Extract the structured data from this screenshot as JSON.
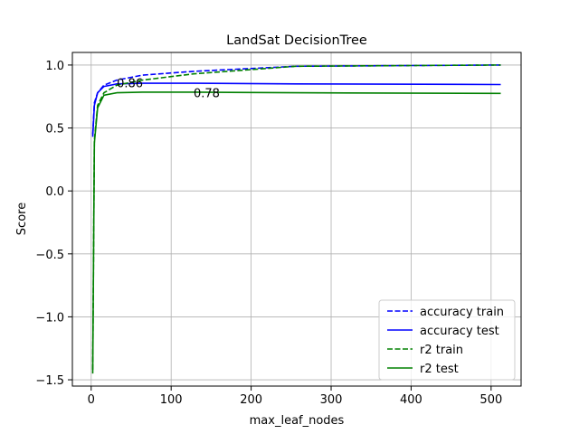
{
  "chart_data": {
    "type": "line",
    "title": "LandSat DecisionTree",
    "xlabel": "max_leaf_nodes",
    "ylabel": "Score",
    "xlim": [
      -23.5,
      537.5
    ],
    "ylim": [
      -1.55,
      1.1
    ],
    "xticks": [
      0,
      100,
      200,
      300,
      400,
      500
    ],
    "yticks": [
      -1.5,
      -1.0,
      -0.5,
      0.0,
      0.5,
      1.0
    ],
    "xtick_labels": [
      "0",
      "100",
      "200",
      "300",
      "400",
      "500"
    ],
    "ytick_labels": [
      "−1.5",
      "−1.0",
      "−0.5",
      "0.0",
      "0.5",
      "1.0"
    ],
    "grid": true,
    "legend_position": "lower-right",
    "x": [
      2,
      4,
      8,
      16,
      32,
      64,
      128,
      256,
      512
    ],
    "series": [
      {
        "name": "accuracy train",
        "color": "#0000ff",
        "dash": "dashed",
        "values": [
          0.45,
          0.7,
          0.78,
          0.84,
          0.88,
          0.92,
          0.95,
          0.99,
          1.0
        ]
      },
      {
        "name": "accuracy test",
        "color": "#0000ff",
        "dash": "solid",
        "values": [
          0.43,
          0.68,
          0.78,
          0.83,
          0.85,
          0.855,
          0.855,
          0.85,
          0.845
        ]
      },
      {
        "name": "r2 train",
        "color": "#008000",
        "dash": "dashed",
        "values": [
          -1.42,
          0.4,
          0.68,
          0.78,
          0.84,
          0.88,
          0.93,
          0.99,
          1.0
        ]
      },
      {
        "name": "r2 test",
        "color": "#008000",
        "dash": "solid",
        "values": [
          -1.45,
          0.38,
          0.66,
          0.76,
          0.78,
          0.785,
          0.785,
          0.78,
          0.775
        ]
      }
    ],
    "annotations": [
      {
        "text": "0.86",
        "x": 32,
        "y": 0.86
      },
      {
        "text": "0.78",
        "x": 128,
        "y": 0.78
      }
    ]
  }
}
